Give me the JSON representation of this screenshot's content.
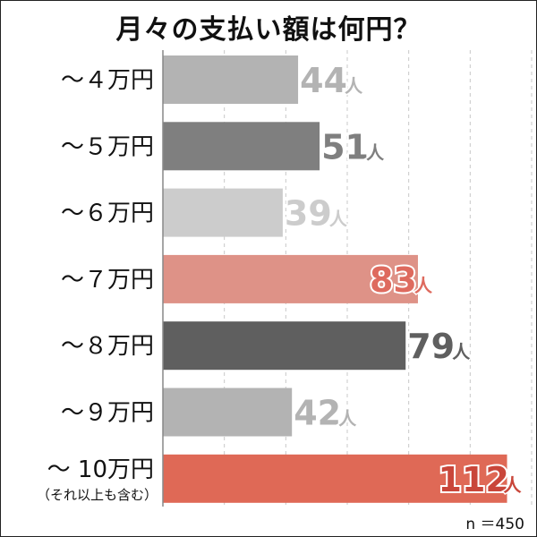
{
  "title": "月々の支払い額は何円？",
  "note": "n ＝450",
  "chart_data": {
    "type": "bar",
    "orientation": "horizontal",
    "categories": [
      "～４万円",
      "～５万円",
      "～６万円",
      "～７万円",
      "～８万円",
      "～９万円",
      "～ 10万円"
    ],
    "category_notes": [
      "",
      "",
      "",
      "",
      "",
      "",
      "（それ以上も含む）"
    ],
    "values": [
      44,
      51,
      39,
      83,
      79,
      42,
      112
    ],
    "value_unit": "人",
    "xlim": [
      0,
      120
    ],
    "grid": "vertical dashed",
    "colors": [
      "#b3b3b3",
      "#7f7f7f",
      "#cccccc",
      "#de9287",
      "#5f5f5f",
      "#b3b3b3",
      "#df6956"
    ],
    "label_colors": [
      "#b3b3b3",
      "#7f7f7f",
      "#cccccc",
      "#de6a5e",
      "#5f5f5f",
      "#b3b3b3",
      "#c9463a"
    ]
  }
}
